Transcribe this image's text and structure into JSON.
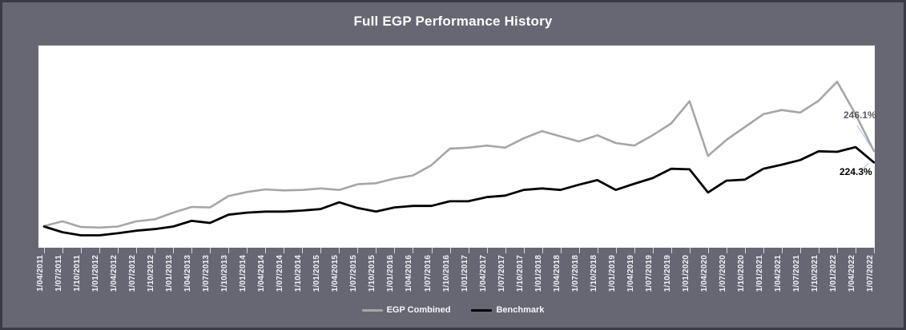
{
  "header": {
    "title": "Full EGP Performance History"
  },
  "chart_data": {
    "type": "line",
    "title": "Full EGP Performance History",
    "x_labels": [
      "1/04/2011",
      "1/07/2011",
      "1/10/2011",
      "1/01/2012",
      "1/04/2012",
      "1/07/2012",
      "1/10/2012",
      "1/01/2013",
      "1/04/2013",
      "1/07/2013",
      "1/10/2013",
      "1/01/2014",
      "1/04/2014",
      "1/07/2014",
      "1/10/2014",
      "1/01/2015",
      "1/04/2015",
      "1/07/2015",
      "1/10/2015",
      "1/01/2016",
      "1/04/2016",
      "1/07/2016",
      "1/10/2016",
      "1/01/2017",
      "1/04/2017",
      "1/07/2017",
      "1/10/2017",
      "1/01/2018",
      "1/04/2018",
      "1/07/2018",
      "1/10/2018",
      "1/01/2019",
      "1/04/2019",
      "1/07/2019",
      "1/10/2019",
      "1/01/2020",
      "1/04/2020",
      "1/07/2020",
      "1/10/2020",
      "1/01/2021",
      "1/04/2021",
      "1/07/2021",
      "1/10/2021",
      "1/01/2022",
      "1/04/2022",
      "1/07/2022"
    ],
    "x_label_unit": "percent",
    "series": [
      {
        "name": "EGP Combined",
        "color": "#a6a6a6",
        "end_label": "246.1%",
        "end_label_color": "#595963",
        "values": [
          101,
          110,
          99,
          98,
          100,
          110,
          114,
          127,
          138,
          137,
          159,
          167,
          172,
          170,
          171,
          174,
          171,
          182,
          184,
          193,
          199,
          219,
          251,
          253,
          257,
          253,
          271,
          285,
          275,
          265,
          277,
          262,
          257,
          277,
          300,
          343,
          237,
          268,
          293,
          318,
          326,
          321,
          344,
          381,
          318,
          246.1
        ]
      },
      {
        "name": "Benchmark",
        "color": "#000000",
        "end_label": "224.3%",
        "end_label_color": "#000000",
        "values": [
          100,
          89,
          83,
          83,
          87,
          92,
          95,
          100,
          111,
          107,
          123,
          127,
          129,
          129,
          131,
          134,
          147,
          136,
          129,
          137,
          140,
          140,
          149,
          149,
          157,
          160,
          171,
          174,
          171,
          181,
          190,
          171,
          183,
          194,
          212,
          211,
          166,
          189,
          191,
          212,
          220,
          229,
          246,
          245,
          254,
          224.3
        ]
      }
    ],
    "y_axis": {
      "visible": false,
      "baseline_value": 100,
      "approx_range": [
        80,
        390
      ]
    },
    "legend": {
      "position": "bottom",
      "items": [
        "EGP Combined",
        "Benchmark"
      ]
    },
    "colors": {
      "background": "#676774",
      "border": "#3a3a44",
      "plot_background": "#ffffff",
      "leader_line": "#9dc3e6",
      "axis_text": "#f0f2f5",
      "title_text": "#ffffff"
    }
  }
}
